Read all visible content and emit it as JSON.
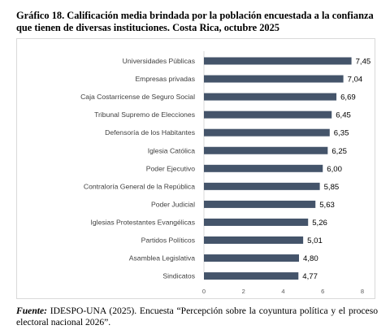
{
  "title": "Gráfico 18. Calificación media brindada por la población encuestada a la confianza que tienen de diversas instituciones. Costa Rica, octubre 2025",
  "source": {
    "label": "Fuente:",
    "text": " IDESPO-UNA (2025). Encuesta “Percepción sobre la coyuntura política y el proceso electoral nacional 2026”."
  },
  "colors": {
    "bar": "#44546a",
    "axis": "#d9d9d9"
  },
  "chart_data": {
    "type": "bar",
    "orientation": "horizontal",
    "categories": [
      "Universidades Públicas",
      "Empresas privadas",
      "Caja Costarricense de Seguro Social",
      "Tribunal Supremo de Elecciones",
      "Defensoría de los Habitantes",
      "Iglesia Católica",
      "Poder Ejecutivo",
      "Contraloría General de la República",
      "Poder Judicial",
      "Iglesias Protestantes Evangélicas",
      "Partidos Políticos",
      "Asamblea Legislativa",
      "Sindicatos"
    ],
    "values": [
      7.45,
      7.04,
      6.69,
      6.45,
      6.35,
      6.25,
      6.0,
      5.85,
      5.63,
      5.26,
      5.01,
      4.8,
      4.77
    ],
    "value_labels": [
      "7,45",
      "7,04",
      "6,69",
      "6,45",
      "6,35",
      "6,25",
      "6,00",
      "5,85",
      "5,63",
      "5,26",
      "5,01",
      "4,80",
      "4,77"
    ],
    "xlim": [
      0,
      8
    ],
    "ticks": [
      0,
      2,
      4,
      6,
      8
    ],
    "tick_labels": [
      "0",
      "2",
      "4",
      "6",
      "8"
    ],
    "grid": false,
    "legend": false
  }
}
